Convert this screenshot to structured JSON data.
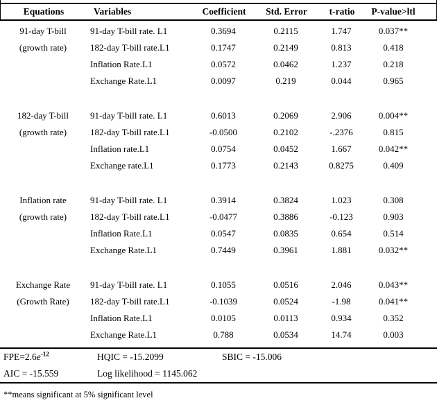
{
  "table": {
    "headers": [
      "Equations",
      "Variables",
      "Coefficient",
      "Std. Error",
      "t-ratio",
      "P-value>ltl"
    ],
    "blocks": [
      {
        "equation": [
          "91-day T-bill",
          "(growth rate)"
        ],
        "rows": [
          {
            "variable": "91-day T-bill rate. L1",
            "coefficient": "0.3694",
            "std_error": "0.2115",
            "t_ratio": "1.747",
            "p_value": "0.037**"
          },
          {
            "variable": "182-day T-bill rate.L1",
            "coefficient": "0.1747",
            "std_error": "0.2149",
            "t_ratio": "0.813",
            "p_value": "0.418"
          },
          {
            "variable": "Inflation Rate.L1",
            "coefficient": "0.0572",
            "std_error": "0.0462",
            "t_ratio": "1.237",
            "p_value": "0.218"
          },
          {
            "variable": "Exchange Rate.L1",
            "coefficient": "0.0097",
            "std_error": "0.219",
            "t_ratio": "0.044",
            "p_value": "0.965"
          }
        ]
      },
      {
        "equation": [
          "182-day T-bill",
          "(growth rate)"
        ],
        "rows": [
          {
            "variable": "91-day T-bill rate. L1",
            "coefficient": "0.6013",
            "std_error": "0.2069",
            "t_ratio": "2.906",
            "p_value": "0.004**"
          },
          {
            "variable": "182-day T-bill rate.L1",
            "coefficient": "-0.0500",
            "std_error": "0.2102",
            "t_ratio": "-.2376",
            "p_value": "0.815"
          },
          {
            "variable": "Inflation rate.L1",
            "coefficient": "0.0754",
            "std_error": "0.0452",
            "t_ratio": "1.667",
            "p_value": "0.042**"
          },
          {
            "variable": "Exchange rate.L1",
            "coefficient": "0.1773",
            "std_error": "0.2143",
            "t_ratio": "0.8275",
            "p_value": "0.409"
          }
        ]
      },
      {
        "equation": [
          "Inflation rate",
          "(growth rate)"
        ],
        "rows": [
          {
            "variable": "91-day T-bill rate. L1",
            "coefficient": "0.3914",
            "std_error": "0.3824",
            "t_ratio": "1.023",
            "p_value": "0.308"
          },
          {
            "variable": "182-day T-bill rate.L1",
            "coefficient": "-0.0477",
            "std_error": "0.3886",
            "t_ratio": "-0.123",
            "p_value": "0.903"
          },
          {
            "variable": "Inflation Rate.L1",
            "coefficient": "0.0547",
            "std_error": "0.0835",
            "t_ratio": "0.654",
            "p_value": "0.514"
          },
          {
            "variable": "Exchange Rate.L1",
            "coefficient": "0.7449",
            "std_error": "0.3961",
            "t_ratio": "1.881",
            "p_value": "0.032**"
          }
        ]
      },
      {
        "equation": [
          "Exchange Rate",
          "(Growth Rate)"
        ],
        "rows": [
          {
            "variable": "91-day T-bill rate. L1",
            "coefficient": "0.1055",
            "std_error": "0.0516",
            "t_ratio": "2.046",
            "p_value": "0.043**"
          },
          {
            "variable": "182-day T-bill rate.L1",
            "coefficient": "-0.1039",
            "std_error": "0.0524",
            "t_ratio": "-1.98",
            "p_value": "0.041**"
          },
          {
            "variable": "Inflation Rate.L1",
            "coefficient": "0.0105",
            "std_error": "0.0113",
            "t_ratio": "0.934",
            "p_value": "0.352"
          },
          {
            "variable": "Exchange Rate.L1",
            "coefficient": "0.788",
            "std_error": "0.0534",
            "t_ratio": "14.74",
            "p_value": "0.003"
          }
        ]
      }
    ]
  },
  "stats": {
    "fpe": {
      "prefix": "FPE=2.6",
      "e": "e",
      "exp": "-12"
    },
    "hqic": "HQIC = -15.2099",
    "sbic": "SBIC = -15.006",
    "aic": "AIC = -15.559",
    "log_likelihood": "Log likelihood = 1145.062"
  },
  "footnote": "**means significant at 5% significant level"
}
